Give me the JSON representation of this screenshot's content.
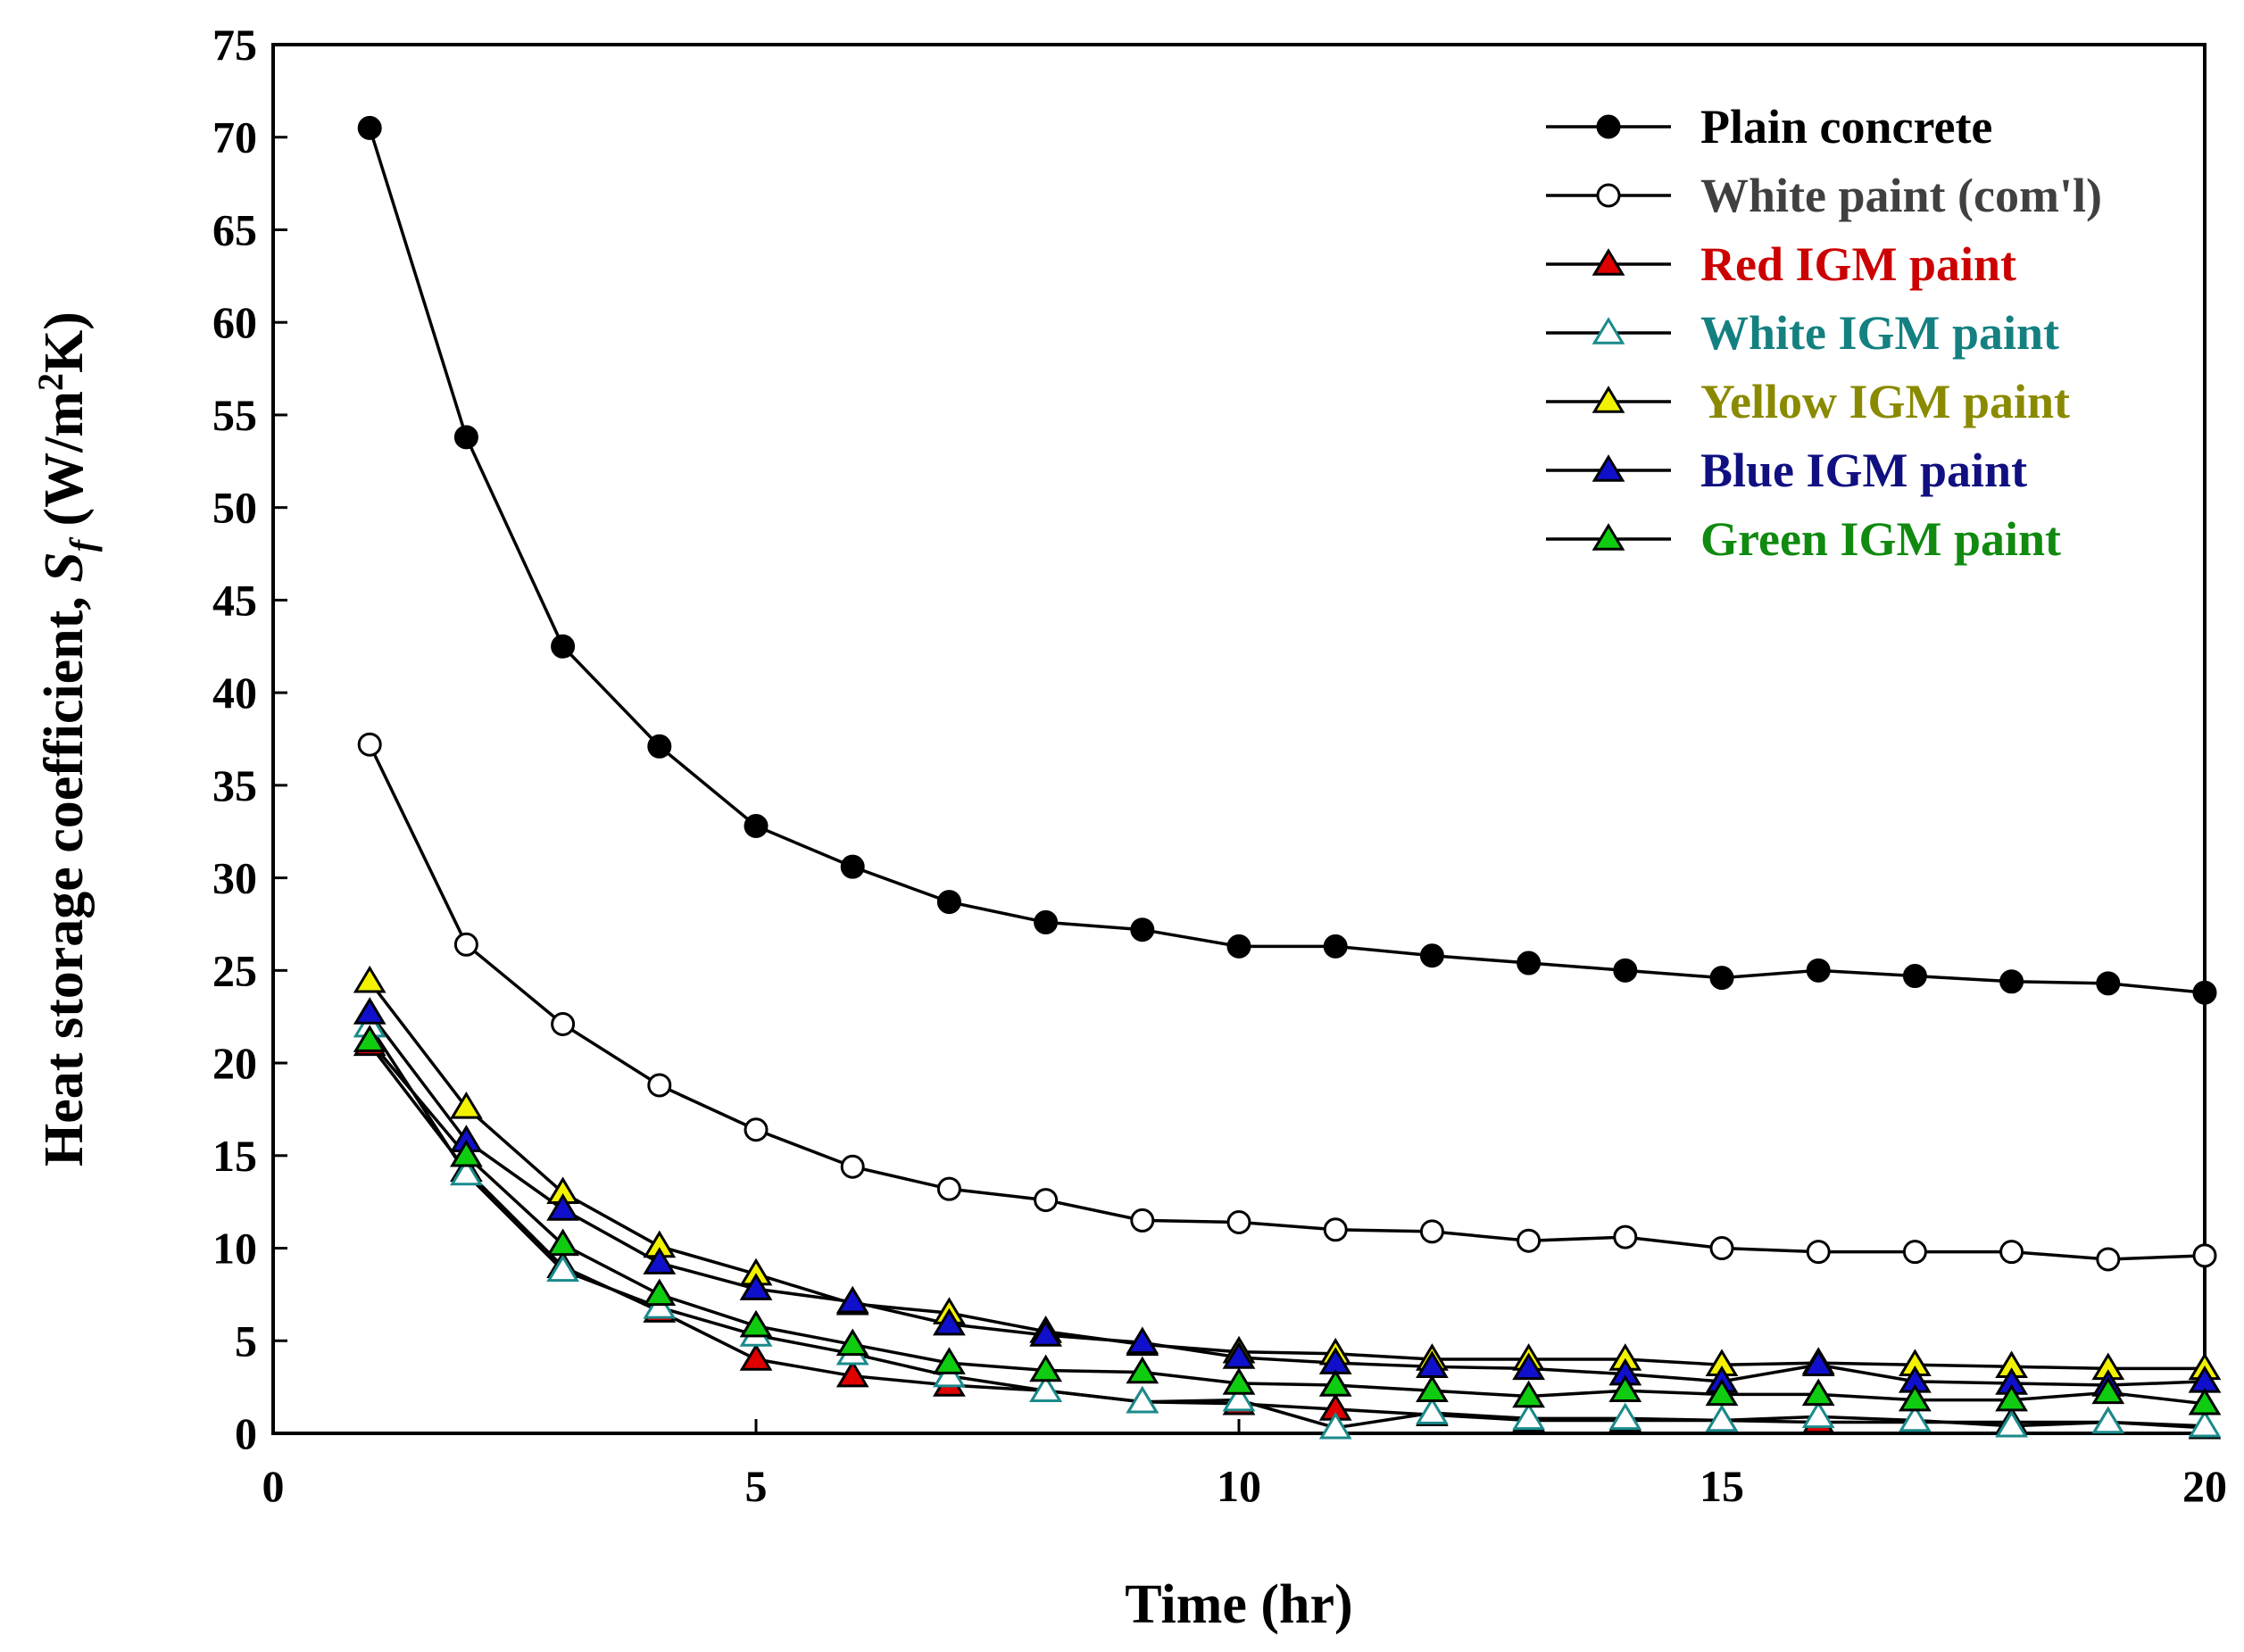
{
  "chart_data": {
    "type": "line",
    "xlabel": "Time (hr)",
    "ylabel": {
      "main": "Heat storage coefficient, ",
      "var": "S",
      "sub": "f",
      "units_pre": " (W/m",
      "sup": "2",
      "units_post": "K)"
    },
    "xlim": [
      0,
      20
    ],
    "ylim": [
      0,
      75
    ],
    "xticks": [
      0,
      5,
      10,
      15,
      20
    ],
    "yticks": [
      0,
      5,
      10,
      15,
      20,
      25,
      30,
      35,
      40,
      45,
      50,
      55,
      60,
      65,
      70,
      75
    ],
    "x": [
      1,
      2,
      3,
      4,
      5,
      6,
      7,
      8,
      9,
      10,
      11,
      12,
      13,
      14,
      15,
      16,
      17,
      18,
      19,
      20
    ],
    "legend_position": "top-right",
    "series": [
      {
        "name": "Plain concrete",
        "marker": "circle",
        "fill": "#000000",
        "label_color": "#000000",
        "values": [
          70.5,
          53.8,
          42.5,
          37.1,
          32.8,
          30.6,
          28.7,
          27.6,
          27.2,
          26.3,
          26.3,
          25.8,
          25.4,
          25.0,
          24.6,
          25.0,
          24.7,
          24.4,
          24.3,
          23.8
        ]
      },
      {
        "name": "White paint (com'l)",
        "marker": "circle",
        "fill": "#ffffff",
        "label_color": "#404040",
        "values": [
          37.2,
          26.4,
          22.1,
          18.8,
          16.4,
          14.4,
          13.2,
          12.6,
          11.5,
          11.4,
          11.0,
          10.9,
          10.4,
          10.6,
          10.0,
          9.8,
          9.8,
          9.8,
          9.4,
          9.6
        ]
      },
      {
        "name": "Red IGM paint",
        "marker": "triangle",
        "fill": "#e00000",
        "label_color": "#cc0000",
        "values": [
          21.0,
          14.2,
          9.0,
          6.6,
          4.0,
          3.1,
          2.6,
          2.3,
          1.7,
          1.6,
          1.3,
          1.0,
          0.7,
          0.7,
          0.7,
          0.6,
          0.6,
          0.6,
          0.6,
          0.3
        ]
      },
      {
        "name": "White IGM paint",
        "marker": "triangle",
        "fill": "#ffffff",
        "stroke": "#1a8a8a",
        "label_color": "#148080",
        "values": [
          22.0,
          14.0,
          8.8,
          6.8,
          5.3,
          4.3,
          3.1,
          2.3,
          1.7,
          1.8,
          0.3,
          1.1,
          0.8,
          0.8,
          0.7,
          0.9,
          0.7,
          0.4,
          0.6,
          0.4
        ]
      },
      {
        "name": "Yellow IGM paint",
        "marker": "triangle",
        "fill": "#f2f200",
        "label_color": "#8a8a00",
        "values": [
          24.4,
          17.6,
          13.0,
          10.1,
          8.6,
          7.0,
          6.5,
          5.5,
          4.8,
          4.4,
          4.3,
          4.0,
          4.0,
          4.0,
          3.7,
          3.8,
          3.7,
          3.6,
          3.5,
          3.5
        ]
      },
      {
        "name": "Blue IGM paint",
        "marker": "triangle",
        "fill": "#1010cc",
        "label_color": "#101080",
        "values": [
          22.7,
          15.8,
          12.1,
          9.2,
          7.8,
          7.1,
          5.9,
          5.3,
          4.9,
          4.1,
          3.8,
          3.6,
          3.5,
          3.2,
          2.8,
          3.7,
          2.8,
          2.7,
          2.6,
          2.8
        ]
      },
      {
        "name": "Green IGM paint",
        "marker": "triangle",
        "fill": "#10cc10",
        "label_color": "#108a10",
        "values": [
          21.2,
          15.0,
          10.2,
          7.5,
          5.8,
          4.8,
          3.8,
          3.4,
          3.3,
          2.7,
          2.6,
          2.3,
          2.0,
          2.3,
          2.1,
          2.1,
          1.8,
          1.8,
          2.2,
          1.6
        ]
      }
    ]
  }
}
